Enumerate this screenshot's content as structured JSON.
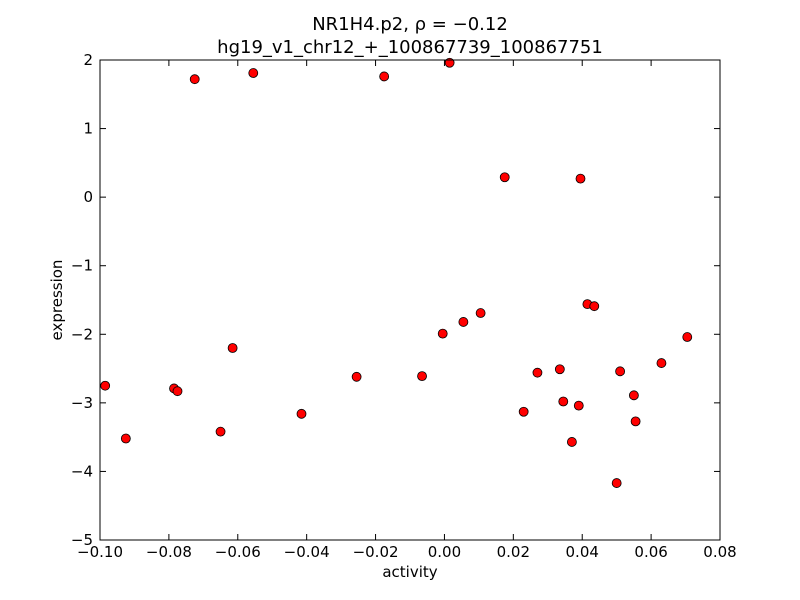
{
  "chart_data": {
    "type": "scatter",
    "title": "NR1H4.p2, ρ = −0.12",
    "subtitle": "hg19_v1_chr12_+_100867739_100867751",
    "xlabel": "activity",
    "ylabel": "expression",
    "xlim": [
      -0.1,
      0.08
    ],
    "ylim": [
      -5,
      2
    ],
    "xticks": [
      -0.1,
      -0.08,
      -0.06,
      -0.04,
      -0.02,
      0.0,
      0.02,
      0.04,
      0.06,
      0.08
    ],
    "yticks": [
      -5,
      -4,
      -3,
      -2,
      -1,
      0,
      1,
      2
    ],
    "xtick_labels": [
      "−0.10",
      "−0.08",
      "−0.06",
      "−0.04",
      "−0.02",
      "0.00",
      "0.02",
      "0.04",
      "0.06",
      "0.08"
    ],
    "ytick_labels": [
      "−5",
      "−4",
      "−3",
      "−2",
      "−1",
      "0",
      "1",
      "2"
    ],
    "grid": false,
    "legend": "none",
    "marker_color": "#ff0000",
    "marker_edge_color": "#000000",
    "points": [
      {
        "x": -0.0985,
        "y": -2.75
      },
      {
        "x": -0.0925,
        "y": -3.52
      },
      {
        "x": -0.0785,
        "y": -2.79
      },
      {
        "x": -0.0775,
        "y": -2.83
      },
      {
        "x": -0.0725,
        "y": 1.72
      },
      {
        "x": -0.065,
        "y": -3.42
      },
      {
        "x": -0.0615,
        "y": -2.2
      },
      {
        "x": -0.0555,
        "y": 1.81
      },
      {
        "x": -0.0415,
        "y": -3.16
      },
      {
        "x": -0.0255,
        "y": -2.62
      },
      {
        "x": -0.0175,
        "y": 1.76
      },
      {
        "x": -0.0065,
        "y": -2.61
      },
      {
        "x": -0.0005,
        "y": -1.99
      },
      {
        "x": 0.0015,
        "y": 1.96
      },
      {
        "x": 0.0055,
        "y": -1.82
      },
      {
        "x": 0.0105,
        "y": -1.69
      },
      {
        "x": 0.0175,
        "y": 0.29
      },
      {
        "x": 0.023,
        "y": -3.13
      },
      {
        "x": 0.027,
        "y": -2.56
      },
      {
        "x": 0.0335,
        "y": -2.51
      },
      {
        "x": 0.0345,
        "y": -2.98
      },
      {
        "x": 0.037,
        "y": -3.57
      },
      {
        "x": 0.039,
        "y": -3.04
      },
      {
        "x": 0.0395,
        "y": 0.27
      },
      {
        "x": 0.0415,
        "y": -1.56
      },
      {
        "x": 0.0435,
        "y": -1.59
      },
      {
        "x": 0.05,
        "y": -4.17
      },
      {
        "x": 0.051,
        "y": -2.54
      },
      {
        "x": 0.055,
        "y": -2.89
      },
      {
        "x": 0.0555,
        "y": -3.27
      },
      {
        "x": 0.063,
        "y": -2.42
      },
      {
        "x": 0.0705,
        "y": -2.04
      }
    ]
  }
}
